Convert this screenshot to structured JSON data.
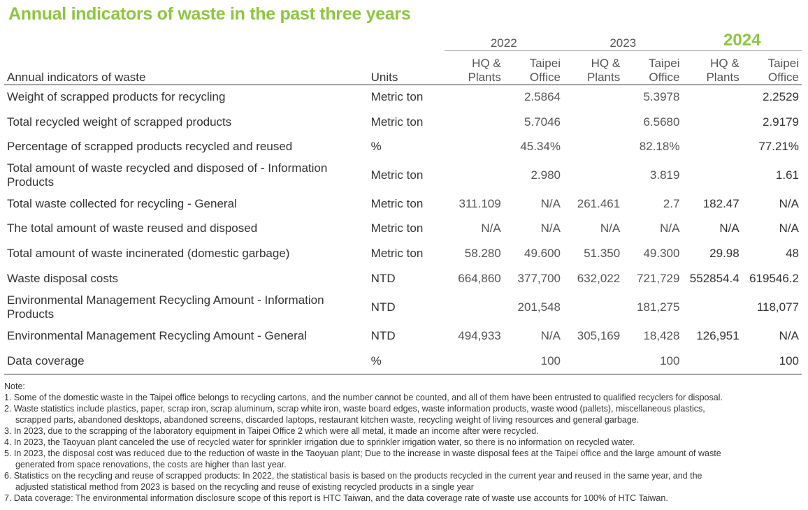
{
  "title": "Annual indicators of waste in the past three years",
  "table": {
    "header": {
      "indicator": "Annual indicators of waste",
      "units": "Units",
      "years": [
        "2022",
        "2023",
        "2024"
      ],
      "sub": [
        "HQ &",
        "Plants",
        "Taipei",
        "Office"
      ]
    },
    "rows": [
      {
        "indicator": "Weight of scrapped products for recycling",
        "unit": "Metric ton",
        "values": [
          "",
          "2.5864",
          "",
          "5.3978",
          "",
          "2.2529"
        ]
      },
      {
        "indicator": "Total recycled weight of scrapped products",
        "unit": "Metric ton",
        "values": [
          "",
          "5.7046",
          "",
          "6.5680",
          "",
          "2.9179"
        ]
      },
      {
        "indicator": "Percentage of scrapped products recycled and reused",
        "unit": "%",
        "values": [
          "",
          "45.34%",
          "",
          "82.18%",
          "",
          "77.21%"
        ]
      },
      {
        "indicator": "Total amount of waste recycled and disposed of - Information Products",
        "unit": "Metric ton",
        "values": [
          "",
          "2.980",
          "",
          "3.819",
          "",
          "1.61"
        ]
      },
      {
        "indicator": "Total waste collected for recycling - General",
        "unit": "Metric ton",
        "values": [
          "311.109",
          "N/A",
          "261.461",
          "2.7",
          "182.47",
          "N/A"
        ]
      },
      {
        "indicator": "The total amount of waste reused and disposed",
        "unit": "Metric ton",
        "values": [
          "N/A",
          "N/A",
          "N/A",
          "N/A",
          "N/A",
          "N/A"
        ]
      },
      {
        "indicator": "Total amount of waste incinerated (domestic garbage)",
        "unit": "Metric ton",
        "values": [
          "58.280",
          "49.600",
          "51.350",
          "49.300",
          "29.98",
          "48"
        ]
      },
      {
        "indicator": "Waste disposal costs",
        "unit": "NTD",
        "values": [
          "664,860",
          "377,700",
          "632,022",
          "721,729",
          "552854.4",
          "619546.2"
        ]
      },
      {
        "indicator": "Environmental Management Recycling Amount - Information Products",
        "unit": "NTD",
        "values": [
          "",
          "201,548",
          "",
          "181,275",
          "",
          "118,077"
        ]
      },
      {
        "indicator": "Environmental Management Recycling Amount - General",
        "unit": "NTD",
        "values": [
          "494,933",
          "N/A",
          "305,169",
          "18,428",
          "126,951",
          "N/A"
        ]
      },
      {
        "indicator": "Data coverage",
        "unit": "%",
        "values": [
          "",
          "100",
          "",
          "100",
          "",
          "100"
        ]
      }
    ]
  },
  "notes": [
    "Note:",
    "1. Some of the domestic waste in the Taipei office belongs to recycling cartons, and the number cannot be counted, and all of them have been entrusted to qualified recyclers for disposal.",
    "2. Waste statistics include plastics, paper, scrap iron, scrap aluminum, scrap white iron, waste board edges, waste information products, waste wood (pallets), miscellaneous plastics,",
    "scrapped parts, abandoned desktops, abandoned screens, discarded laptops, restaurant kitchen waste, recycling weight of living resources and general garbage.",
    "3. In 2023, due to the scrapping of the laboratory equipment in Taipei Office 2 which were all metal, it made an income after were recycled.",
    "4. In 2023, the Taoyuan plant canceled the use of recycled water for sprinkler irrigation due to sprinkler irrigation water, so there is no information on recycled water.",
    "5. In 2023, the disposal cost was reduced due to the reduction of waste in the Taoyuan plant; Due to the increase in waste disposal fees at the Taipei office and the large amount of waste",
    "generated from space renovations, the costs are higher than last year.",
    "6. Statistics on the recycling and reuse of scrapped products: In 2022, the statistical basis is based on the products recycled in the current year and reused in the same year, and the",
    "adjusted statistical method from 2023 is based on the recycling and reuse of existing recycled products in a single year",
    "7. Data coverage: The environmental information disclosure scope of this report is HTC Taiwan, and the data coverage rate of waste use accounts for 100% of HTC Taiwan."
  ]
}
